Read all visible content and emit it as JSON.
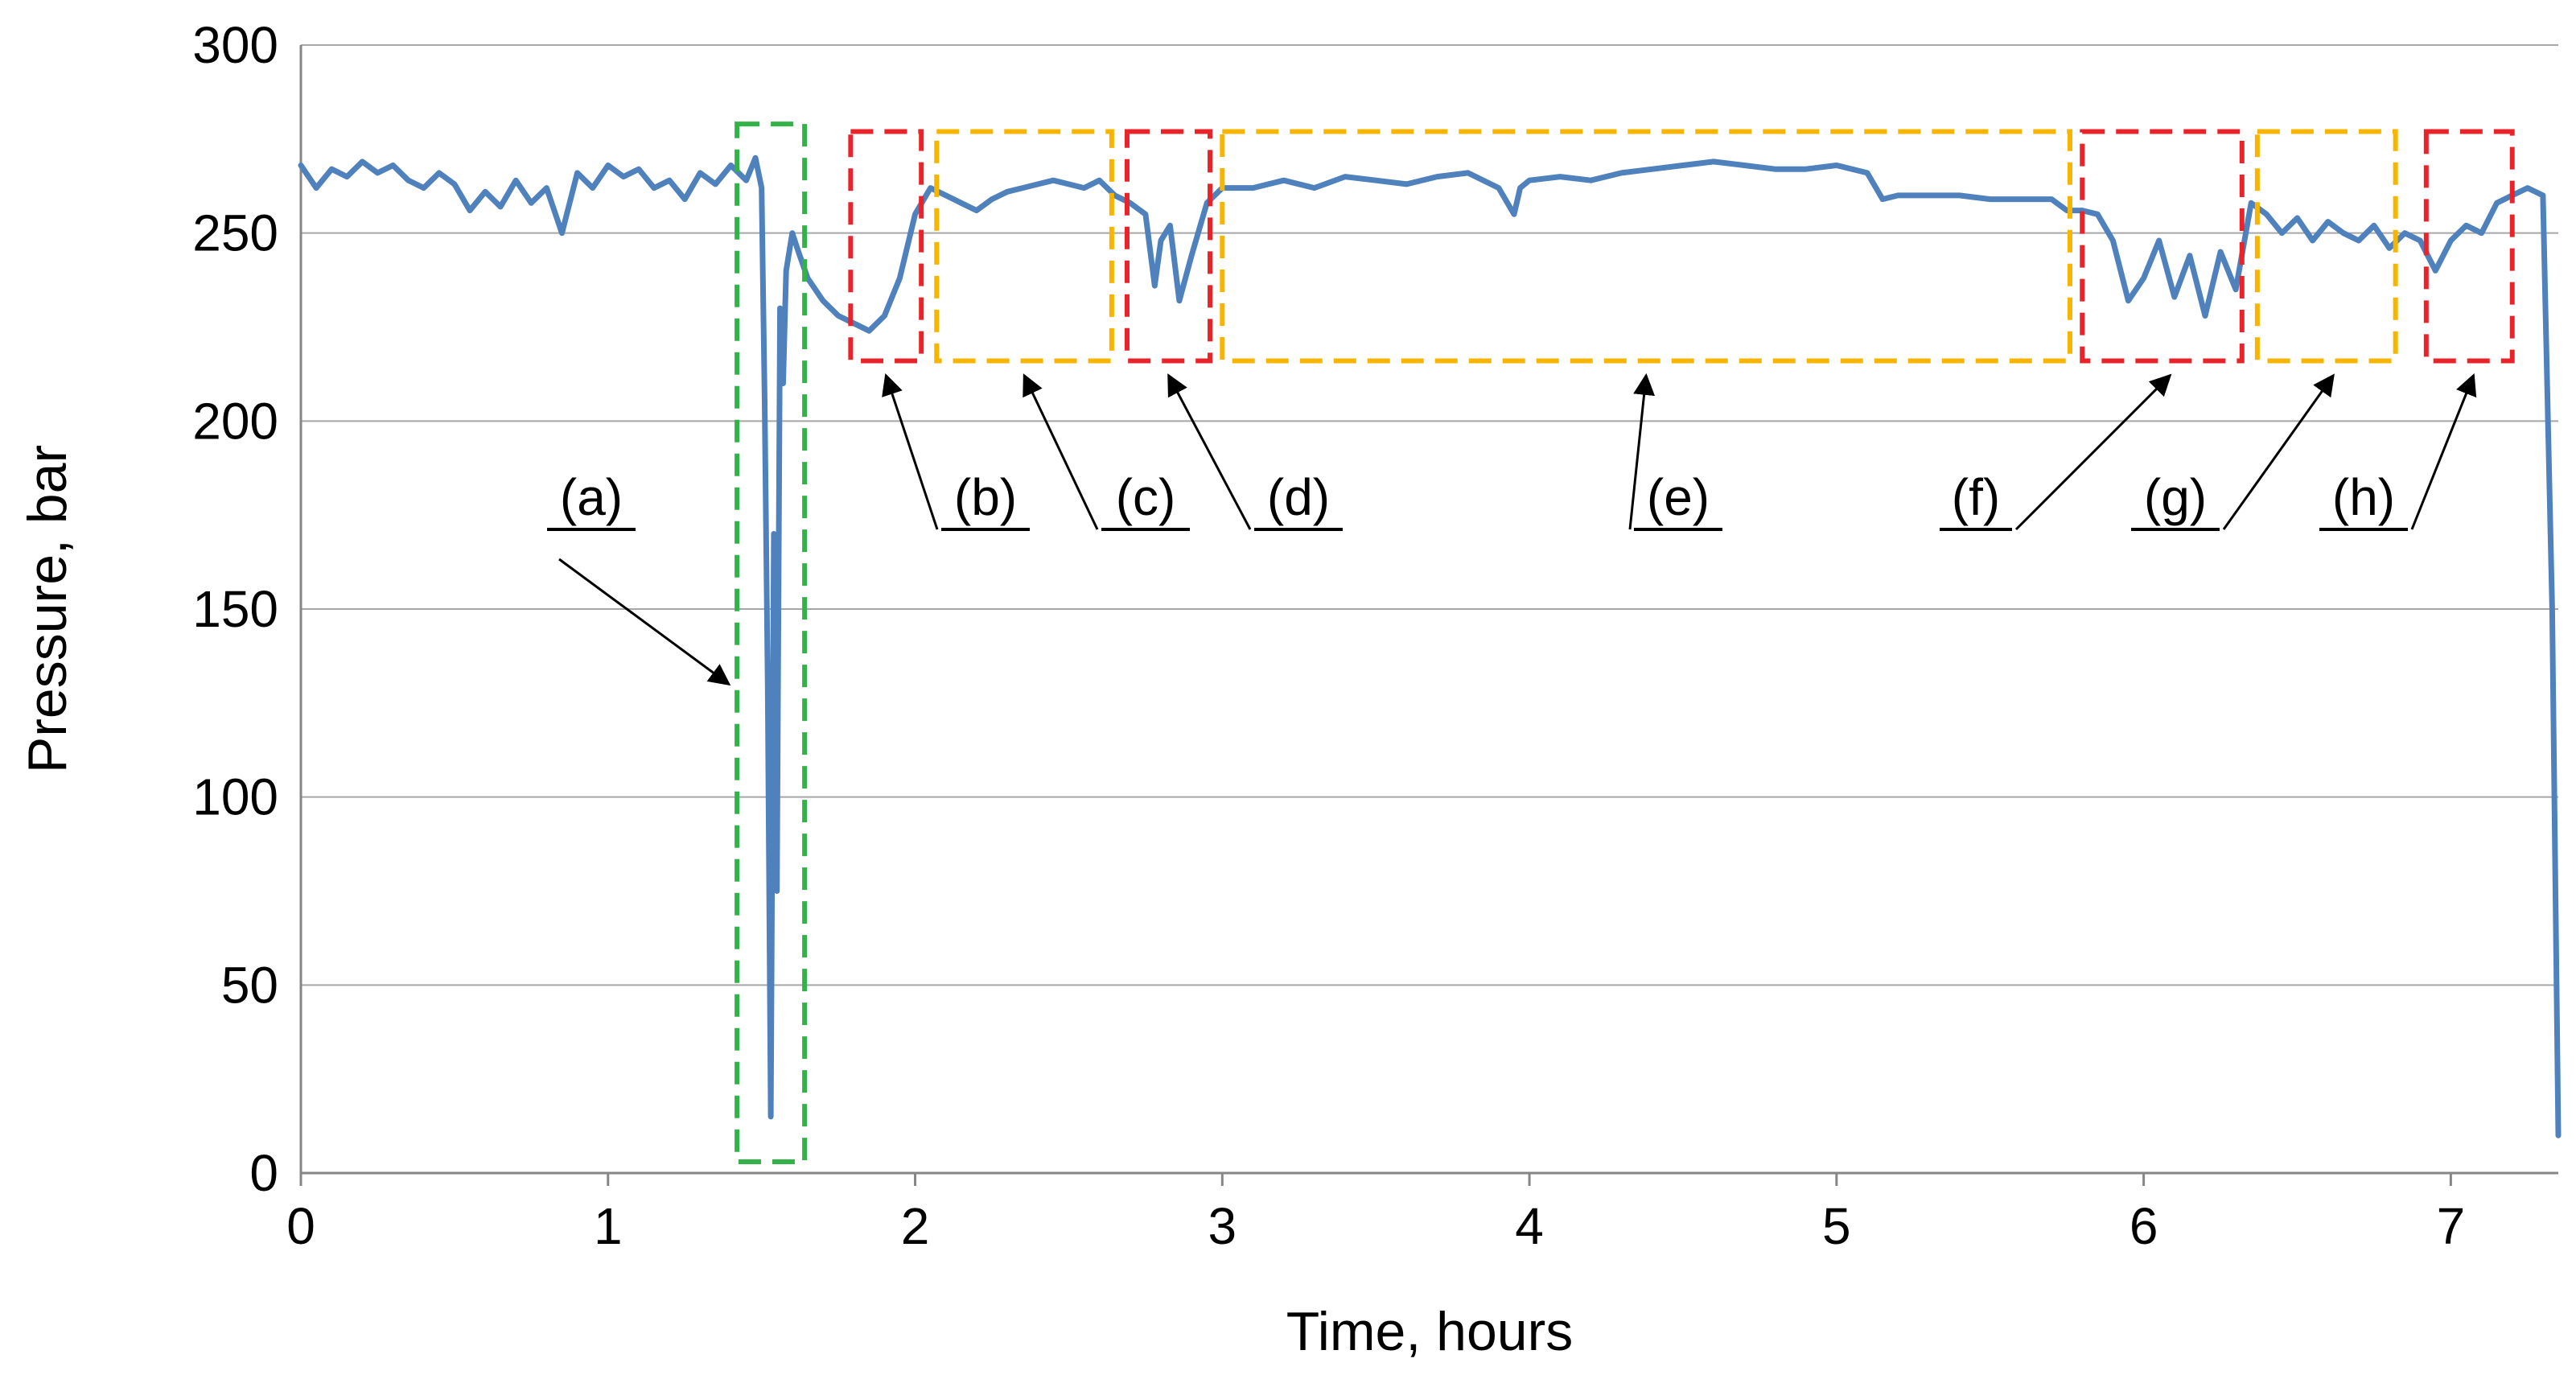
{
  "chart_data": {
    "type": "line",
    "title": "",
    "xlabel": "Time, hours",
    "ylabel": "Pressure,  bar",
    "xlim": [
      0,
      7.35
    ],
    "ylim": [
      0,
      300
    ],
    "x_ticks": [
      0,
      1,
      2,
      3,
      4,
      5,
      6,
      7
    ],
    "x_tick_labels": [
      "0",
      "1",
      "2",
      "3",
      "4",
      "5",
      "6",
      "7"
    ],
    "y_ticks": [
      0,
      50,
      100,
      150,
      200,
      250,
      300
    ],
    "y_tick_labels": [
      "0",
      "50",
      "100",
      "150",
      "200",
      "250",
      "300"
    ],
    "grid": "horizontal",
    "legend": "none",
    "line_color": "#4f81bd",
    "series": [
      {
        "name": "Pressure",
        "x": [
          0,
          0.05,
          0.1,
          0.15,
          0.2,
          0.25,
          0.3,
          0.35,
          0.4,
          0.45,
          0.5,
          0.55,
          0.6,
          0.65,
          0.7,
          0.75,
          0.8,
          0.85,
          0.9,
          0.95,
          1.0,
          1.05,
          1.1,
          1.15,
          1.2,
          1.25,
          1.3,
          1.35,
          1.4,
          1.45,
          1.48,
          1.5,
          1.51,
          1.52,
          1.53,
          1.54,
          1.55,
          1.56,
          1.57,
          1.58,
          1.6,
          1.62,
          1.65,
          1.7,
          1.75,
          1.8,
          1.85,
          1.9,
          1.95,
          2.0,
          2.05,
          2.1,
          2.15,
          2.2,
          2.25,
          2.3,
          2.35,
          2.4,
          2.45,
          2.5,
          2.55,
          2.6,
          2.65,
          2.7,
          2.75,
          2.78,
          2.8,
          2.83,
          2.86,
          2.9,
          2.95,
          3.0,
          3.1,
          3.2,
          3.3,
          3.4,
          3.5,
          3.6,
          3.7,
          3.8,
          3.9,
          3.95,
          3.97,
          4.0,
          4.1,
          4.2,
          4.3,
          4.4,
          4.5,
          4.6,
          4.7,
          4.8,
          4.9,
          5.0,
          5.1,
          5.15,
          5.2,
          5.3,
          5.4,
          5.5,
          5.6,
          5.7,
          5.75,
          5.8,
          5.85,
          5.9,
          5.95,
          6.0,
          6.05,
          6.1,
          6.15,
          6.2,
          6.25,
          6.3,
          6.35,
          6.4,
          6.45,
          6.5,
          6.55,
          6.6,
          6.65,
          6.7,
          6.75,
          6.8,
          6.85,
          6.9,
          6.95,
          7.0,
          7.05,
          7.1,
          7.15,
          7.2,
          7.25,
          7.3,
          7.33,
          7.35
        ],
        "y": [
          268,
          262,
          267,
          265,
          269,
          266,
          268,
          264,
          262,
          266,
          263,
          256,
          261,
          257,
          264,
          258,
          262,
          250,
          266,
          262,
          268,
          265,
          267,
          262,
          264,
          259,
          266,
          263,
          268,
          264,
          270,
          262,
          205,
          130,
          15,
          170,
          75,
          230,
          210,
          240,
          250,
          245,
          238,
          232,
          228,
          226,
          224,
          228,
          238,
          255,
          262,
          260,
          258,
          256,
          259,
          261,
          262,
          263,
          264,
          263,
          262,
          264,
          260,
          258,
          255,
          236,
          248,
          252,
          232,
          244,
          258,
          262,
          262,
          264,
          262,
          265,
          264,
          263,
          265,
          266,
          262,
          255,
          262,
          264,
          265,
          264,
          266,
          267,
          268,
          269,
          268,
          267,
          267,
          268,
          266,
          259,
          260,
          260,
          260,
          259,
          259,
          259,
          256,
          256,
          255,
          248,
          232,
          238,
          248,
          233,
          244,
          228,
          245,
          235,
          258,
          255,
          250,
          254,
          248,
          253,
          250,
          248,
          252,
          246,
          250,
          248,
          240,
          248,
          252,
          250,
          258,
          260,
          262,
          260,
          150,
          10
        ]
      }
    ],
    "annotations": [
      {
        "label": "(a)",
        "color": "#33b24a",
        "x0": 1.42,
        "x1": 1.64,
        "y0": 3,
        "y1": 279
      },
      {
        "label": "(b)",
        "color": "#e8242a",
        "x0": 1.79,
        "x1": 2.02,
        "y0": 216,
        "y1": 277
      },
      {
        "label": "(c)",
        "color": "#f7b500",
        "x0": 2.07,
        "x1": 2.64,
        "y0": 216,
        "y1": 277
      },
      {
        "label": "(d)",
        "color": "#e8242a",
        "x0": 2.69,
        "x1": 2.96,
        "y0": 216,
        "y1": 277
      },
      {
        "label": "(e)",
        "color": "#f7b500",
        "x0": 3.0,
        "x1": 5.76,
        "y0": 216,
        "y1": 277
      },
      {
        "label": "(f)",
        "color": "#e8242a",
        "x0": 5.8,
        "x1": 6.32,
        "y0": 216,
        "y1": 277
      },
      {
        "label": "(g)",
        "color": "#f7b500",
        "x0": 6.37,
        "x1": 6.82,
        "y0": 216,
        "y1": 277
      },
      {
        "label": "(h)",
        "color": "#e8242a",
        "x0": 6.92,
        "x1": 7.2,
        "y0": 216,
        "y1": 277
      }
    ]
  }
}
